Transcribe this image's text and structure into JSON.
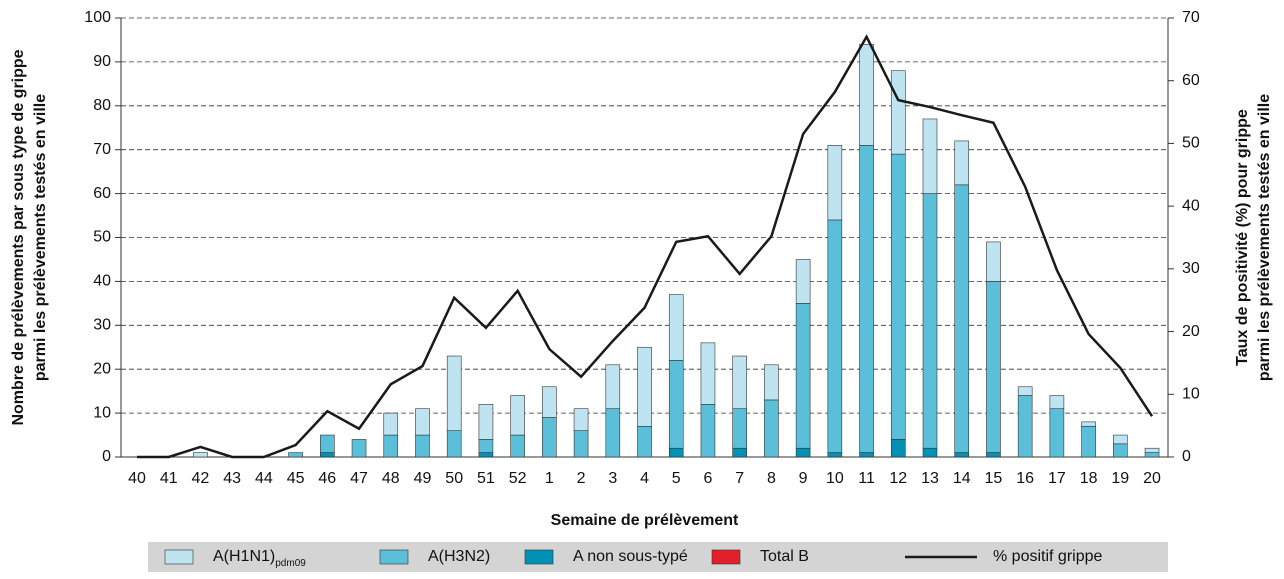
{
  "chart_data": {
    "type": "bar-line",
    "xlabel": "Semaine de prélèvement",
    "ylabel": [
      "Nombre de prélèvements par sous type de grippe",
      "parmi les prélèvements testés en ville"
    ],
    "y2label": [
      "Taux de positivité (%) pour grippe",
      "parmi les prélèvements testés en ville"
    ],
    "categories": [
      "40",
      "41",
      "42",
      "43",
      "44",
      "45",
      "46",
      "47",
      "48",
      "49",
      "50",
      "51",
      "52",
      "1",
      "2",
      "3",
      "4",
      "5",
      "6",
      "7",
      "8",
      "9",
      "10",
      "11",
      "12",
      "13",
      "14",
      "15",
      "16",
      "17",
      "18",
      "19",
      "20"
    ],
    "series": [
      {
        "name": "A(H1N1)",
        "subscript": "pdm09",
        "color": "#bfe4f1",
        "values": [
          0,
          0,
          1,
          0,
          0,
          0,
          0,
          0,
          5,
          6,
          17,
          8,
          9,
          7,
          5,
          10,
          18,
          15,
          14,
          12,
          8,
          10,
          17,
          23,
          19,
          17,
          10,
          9,
          2,
          3,
          1,
          2,
          1
        ]
      },
      {
        "name": "A(H3N2)",
        "color": "#5bbfd9",
        "values": [
          0,
          0,
          0,
          0,
          0,
          1,
          4,
          4,
          5,
          5,
          6,
          3,
          5,
          9,
          6,
          11,
          7,
          20,
          12,
          9,
          13,
          33,
          53,
          70,
          65,
          58,
          61,
          39,
          14,
          11,
          7,
          3,
          1
        ]
      },
      {
        "name": "A non sous-typé",
        "color": "#0091b4",
        "values": [
          0,
          0,
          0,
          0,
          0,
          0,
          1,
          0,
          0,
          0,
          0,
          1,
          0,
          0,
          0,
          0,
          0,
          2,
          0,
          2,
          0,
          2,
          1,
          1,
          4,
          2,
          1,
          1,
          0,
          0,
          0,
          0,
          0
        ]
      },
      {
        "name": "Total B",
        "color": "#e3202a",
        "values": [
          0,
          0,
          0,
          0,
          0,
          0,
          0,
          0,
          0,
          0,
          0,
          0,
          0,
          0,
          0,
          0,
          0,
          0,
          0,
          0,
          0,
          0,
          0,
          0,
          0,
          0,
          0,
          0,
          0,
          0,
          0,
          0,
          0
        ]
      },
      {
        "name": "% positif grippe",
        "color": "#1a1a1a",
        "axis": "y2",
        "type": "line",
        "values": [
          0,
          0,
          1.6,
          0,
          0,
          1.9,
          7.3,
          4.5,
          11.6,
          14.5,
          25.4,
          20.6,
          26.5,
          17.2,
          12.8,
          18.5,
          23.8,
          34.3,
          35.2,
          29.2,
          35.2,
          51.5,
          58.2,
          67.0,
          56.9,
          55.8,
          54.5,
          53.3,
          43.1,
          29.8,
          19.6,
          14.2,
          6.5
        ]
      }
    ],
    "ylim": [
      0,
      100
    ],
    "yticks": [
      0,
      10,
      20,
      30,
      40,
      50,
      60,
      70,
      80,
      90,
      100
    ],
    "y2lim": [
      0,
      70
    ],
    "y2ticks": [
      0,
      10,
      20,
      30,
      40,
      50,
      60,
      70
    ],
    "grid": true,
    "legend": "bottom"
  }
}
